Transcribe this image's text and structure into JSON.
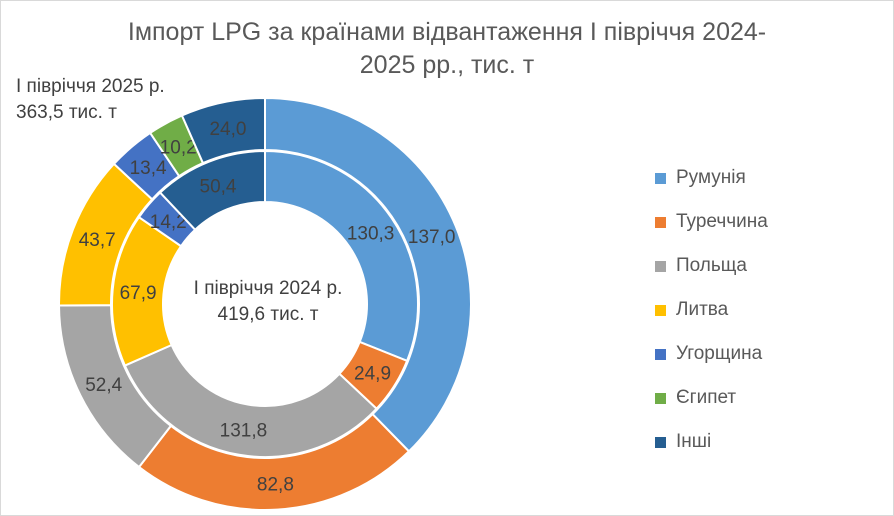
{
  "chart_data": {
    "type": "pie",
    "subtype": "doughnut",
    "title_line1": "Імпорт LPG за країнами відвантаження І півріччя 2024-",
    "title_line2": "2025 рр., тис. т",
    "categories": [
      "Румунія",
      "Туреччина",
      "Польща",
      "Литва",
      "Угорщина",
      "Єгипет",
      "Інші"
    ],
    "colors": [
      "#5B9BD5",
      "#ED7D31",
      "#A5A5A5",
      "#FFC000",
      "#4472C4",
      "#70AD47",
      "#255E91"
    ],
    "legend_position": "right",
    "series": [
      {
        "name": "І півріччя 2024 р.",
        "ring": "inner",
        "total_line": "419,6 тис. т",
        "values": [
          130.3,
          24.9,
          131.8,
          67.9,
          14.2,
          0,
          50.4
        ],
        "labels": [
          "130,3",
          "24,9",
          "131,8",
          "67,9",
          "14,2",
          "",
          "50,4"
        ]
      },
      {
        "name": "І півріччя 2025 р.",
        "ring": "outer",
        "total_line": "363,5 тис. т",
        "values": [
          137.0,
          82.8,
          52.4,
          43.7,
          13.4,
          10.2,
          24.0
        ],
        "labels": [
          "137,0",
          "82,8",
          "52,4",
          "43,7",
          "13,4",
          "10,2",
          "24,0"
        ]
      }
    ]
  }
}
